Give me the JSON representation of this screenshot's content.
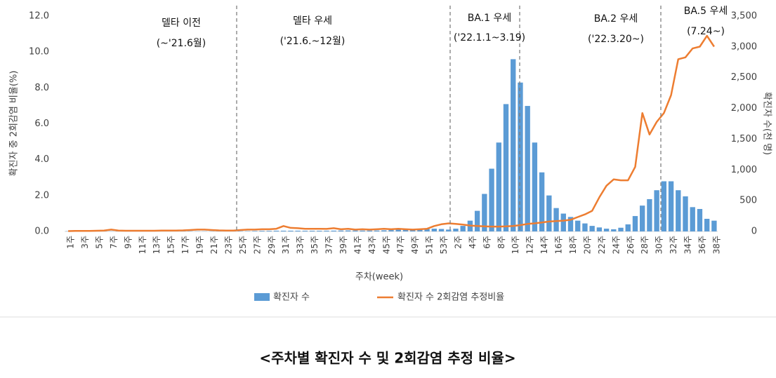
{
  "chart_data": {
    "type": "bar-line",
    "caption": "<주차별 확진자 수 및 2회감염 추정 비율>",
    "xlabel": "주차(week)",
    "ylabel": "확진자 중 2회감염 비율(%)",
    "y2label": "확진자 수(천 명)",
    "annotations": [
      [
        "델타 이전",
        "(~'21.6월)"
      ],
      [
        "델타 우세",
        "('21.6.~12월)"
      ],
      [
        "BA.1 우세",
        "('22.1.1~3.19)"
      ],
      [
        "BA.2 우세",
        "('22.3.20~)"
      ],
      [
        "BA.5 우세",
        "(7.24~)"
      ]
    ],
    "categories": [
      "1주",
      null,
      "3주",
      null,
      "5주",
      null,
      "7주",
      null,
      "9주",
      null,
      "11주",
      null,
      "13주",
      null,
      "15주",
      null,
      "17주",
      null,
      "19주",
      null,
      "21주",
      null,
      "23주",
      null,
      "25주",
      null,
      "27주",
      null,
      "29주",
      null,
      "31주",
      null,
      "33주",
      null,
      "35주",
      null,
      "37주",
      null,
      "39주",
      null,
      "41주",
      null,
      "43주",
      null,
      "45주",
      null,
      "47주",
      null,
      "49주",
      null,
      "51주",
      null,
      "53주",
      null,
      "2주",
      null,
      "4주",
      null,
      "6주",
      null,
      "8주",
      null,
      "10주",
      null,
      "12주",
      null,
      "14주",
      null,
      "16주",
      null,
      "18주",
      null,
      "20주",
      null,
      "22주",
      null,
      "24주",
      null,
      "26주",
      null,
      "28주",
      null,
      "30주",
      null,
      "32주",
      null,
      "34주",
      null,
      "36주",
      null,
      "38주"
    ],
    "series": [
      {
        "name": "확진자 수",
        "kind": "bar",
        "axis": "y2",
        "color": "#5b9bd5",
        "values": [
          4,
          3,
          3,
          3,
          3,
          3,
          3,
          3,
          3,
          3,
          3,
          4,
          4,
          4,
          4,
          4,
          4,
          4,
          3,
          3,
          3,
          3,
          3,
          4,
          5,
          5,
          8,
          10,
          10,
          12,
          12,
          12,
          12,
          11,
          11,
          11,
          12,
          13,
          15,
          16,
          15,
          14,
          14,
          15,
          18,
          22,
          30,
          35,
          38,
          40,
          42,
          45,
          40,
          30,
          45,
          90,
          175,
          335,
          610,
          1020,
          1445,
          2070,
          2800,
          2420,
          2040,
          1445,
          960,
          585,
          380,
          290,
          235,
          175,
          130,
          90,
          65,
          45,
          35,
          60,
          115,
          250,
          420,
          525,
          670,
          815,
          815,
          670,
          570,
          395,
          365,
          205,
          175
        ]
      },
      {
        "name": "확진자 수 2회감염 추정비율",
        "kind": "line",
        "axis": "y",
        "color": "#ed7d31",
        "values": [
          0.02,
          0.03,
          0.03,
          0.03,
          0.04,
          0.05,
          0.1,
          0.05,
          0.04,
          0.04,
          0.04,
          0.04,
          0.04,
          0.05,
          0.05,
          0.05,
          0.06,
          0.08,
          0.1,
          0.1,
          0.08,
          0.06,
          0.05,
          0.05,
          0.08,
          0.1,
          0.1,
          0.12,
          0.12,
          0.15,
          0.3,
          0.2,
          0.18,
          0.15,
          0.15,
          0.15,
          0.14,
          0.18,
          0.12,
          0.15,
          0.1,
          0.12,
          0.1,
          0.12,
          0.15,
          0.12,
          0.15,
          0.12,
          0.1,
          0.12,
          0.15,
          0.3,
          0.4,
          0.45,
          0.42,
          0.38,
          0.33,
          0.3,
          0.28,
          0.27,
          0.27,
          0.28,
          0.3,
          0.35,
          0.42,
          0.45,
          0.5,
          0.55,
          0.58,
          0.6,
          0.65,
          0.8,
          0.95,
          1.15,
          1.9,
          2.55,
          2.9,
          2.85,
          2.85,
          3.6,
          6.6,
          5.4,
          6.1,
          6.6,
          7.6,
          9.6,
          9.7,
          10.2,
          10.3,
          10.9,
          10.3
        ]
      }
    ],
    "ylim": [
      0,
      12
    ],
    "yticks": [
      {
        "value": 0,
        "label": "0.0"
      },
      {
        "value": 2,
        "label": "2.0"
      },
      {
        "value": 4,
        "label": "4.0"
      },
      {
        "value": 6,
        "label": "6.0"
      },
      {
        "value": 8,
        "label": "8.0"
      },
      {
        "value": 10,
        "label": "10.0"
      },
      {
        "value": 12,
        "label": "12.0"
      }
    ],
    "y2lim": [
      0,
      3500
    ],
    "y2ticks": [
      0,
      500,
      {
        "value": 1000,
        "label": "1,000"
      },
      {
        "value": 1500,
        "label": "1,500"
      },
      {
        "value": 2000,
        "label": "2,000"
      },
      {
        "value": 2500,
        "label": "2,500"
      },
      {
        "value": 3000,
        "label": "3,000"
      },
      {
        "value": 3500,
        "label": "3,500"
      }
    ],
    "grid": false,
    "legend": "bottom"
  }
}
